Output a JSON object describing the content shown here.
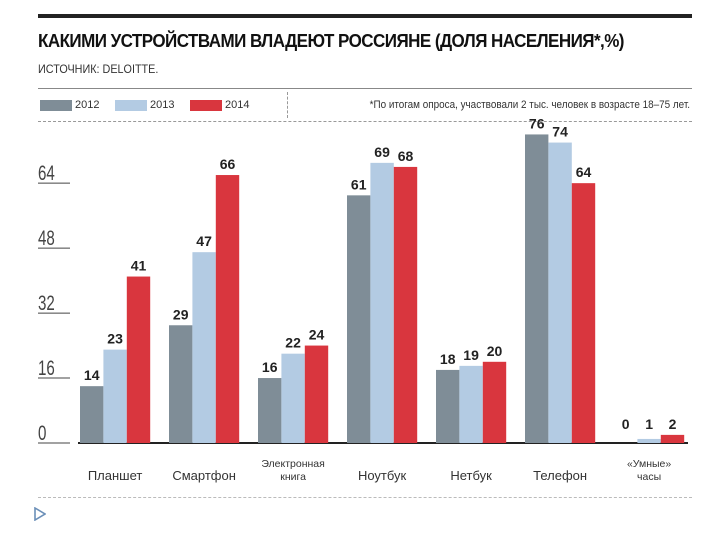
{
  "chart_data": {
    "type": "bar",
    "title": "КАКИМИ УСТРОЙСТВАМИ ВЛАДЕЮТ РОССИЯНЕ (ДОЛЯ НАСЕЛЕНИЯ*,%)",
    "source": "ИСТОЧНИК: DELOITTE.",
    "footnote": "*По итогам опроса, участвовали 2 тыс. человек в возрасте 18–75 лет.",
    "categories": [
      [
        "Планшет"
      ],
      [
        "Смартфон"
      ],
      [
        "Электронная",
        "книга"
      ],
      [
        "Ноутбук"
      ],
      [
        "Нетбук"
      ],
      [
        "Телефон"
      ],
      [
        "«Умные»",
        "часы"
      ]
    ],
    "series": [
      {
        "name": "2012",
        "color": "#7f8d97",
        "values": [
          14,
          29,
          16,
          61,
          18,
          76,
          0
        ]
      },
      {
        "name": "2013",
        "color": "#b3cbe3",
        "values": [
          23,
          47,
          22,
          69,
          19,
          74,
          1
        ]
      },
      {
        "name": "2014",
        "color": "#d9363e",
        "values": [
          41,
          66,
          24,
          68,
          20,
          64,
          2
        ]
      }
    ],
    "yticks": [
      0,
      16,
      32,
      48,
      64
    ],
    "ylim": [
      0,
      76
    ],
    "grid": false,
    "legend": "top-left"
  }
}
